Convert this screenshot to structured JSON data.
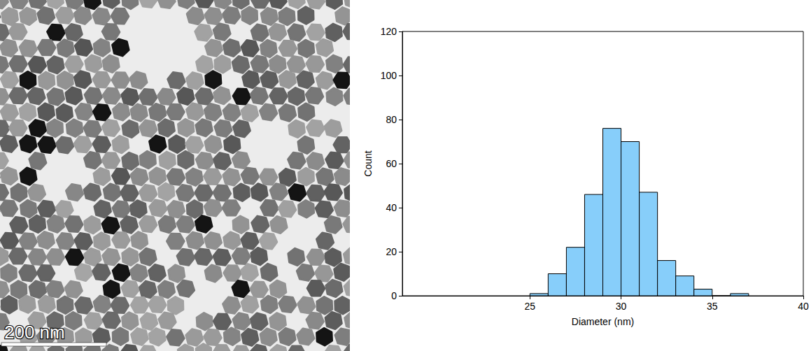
{
  "chart_data": {
    "type": "histogram",
    "bins": [
      25,
      26,
      27,
      28,
      29,
      30,
      31,
      32,
      33,
      34,
      35,
      36,
      37
    ],
    "counts": [
      1,
      10,
      22,
      46,
      76,
      70,
      47,
      16,
      9,
      3,
      0,
      1
    ],
    "color": "#87cefa",
    "xlabel": "Diameter (nm)",
    "ylabel": "Count",
    "xlim": [
      18,
      40
    ],
    "xticks": [
      25,
      30,
      35,
      40
    ],
    "ylim": [
      0,
      120
    ],
    "yticks": [
      0,
      20,
      40,
      60,
      80,
      100,
      120
    ],
    "grid": false
  },
  "micrograph": {
    "scale_bar": "200 nm"
  }
}
